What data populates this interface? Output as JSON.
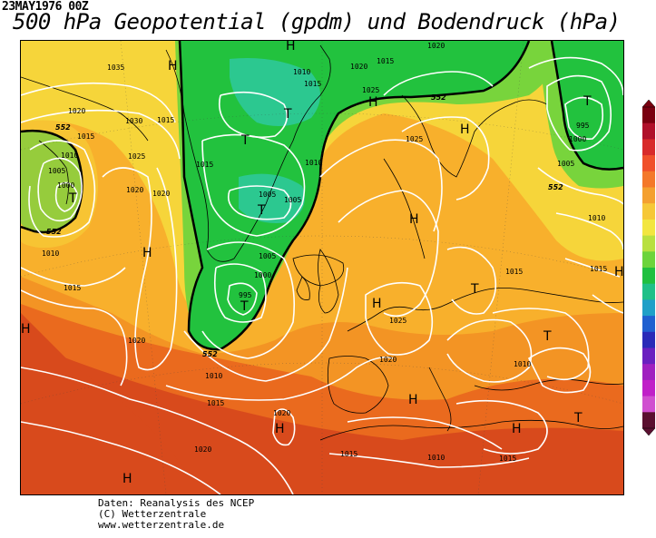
{
  "header": {
    "date": "23MAY1976 00Z",
    "title": "500 hPa Geopotential (gpdm) und Bodendruck (hPa)"
  },
  "credits": {
    "line1": "Daten: Reanalysis des NCEP",
    "line2": "(C) Wetterzentrale",
    "line3": "www.wetterzentrale.de"
  },
  "colors": {
    "dark_red": "#d84a1c",
    "red_orange": "#ea6a1e",
    "orange": "#f39424",
    "light_orange": "#f8b02c",
    "yellow": "#f6d53a",
    "light_green": "#78d43c",
    "green": "#22c23e",
    "cyan_green": "#2cc890",
    "isobar": "#ffffff",
    "coast": "#000000"
  },
  "pressure_labels": [
    {
      "id": "p1035",
      "text": "1035"
    },
    {
      "id": "p1030",
      "text": "1030"
    },
    {
      "id": "p1025a",
      "text": "1025"
    },
    {
      "id": "p1020a",
      "text": "1020"
    },
    {
      "id": "p1020b",
      "text": "1020"
    },
    {
      "id": "p1015a",
      "text": "1015"
    },
    {
      "id": "p1010a",
      "text": "1010"
    },
    {
      "id": "p1005a",
      "text": "1005"
    },
    {
      "id": "p1000a",
      "text": "1000"
    },
    {
      "id": "p1010b",
      "text": "1010"
    },
    {
      "id": "p1015b",
      "text": "1015"
    },
    {
      "id": "p1020c",
      "text": "1020"
    },
    {
      "id": "p1015c",
      "text": "1015"
    },
    {
      "id": "p1010c",
      "text": "1010"
    },
    {
      "id": "p1005b",
      "text": "1005"
    },
    {
      "id": "p1005c",
      "text": "1005"
    },
    {
      "id": "p1005d",
      "text": "1005"
    },
    {
      "id": "p1000b",
      "text": "1000"
    },
    {
      "id": "p995a",
      "text": "995"
    },
    {
      "id": "p1010d",
      "text": "1010"
    },
    {
      "id": "p1015d",
      "text": "1015"
    },
    {
      "id": "p1020d",
      "text": "1020"
    },
    {
      "id": "p1020e",
      "text": "1020"
    },
    {
      "id": "p1015e",
      "text": "1015"
    },
    {
      "id": "p1015f",
      "text": "1015"
    },
    {
      "id": "p1010e",
      "text": "1010"
    },
    {
      "id": "p1015g",
      "text": "1015"
    },
    {
      "id": "p1020f",
      "text": "1020"
    },
    {
      "id": "p1020g",
      "text": "1020"
    },
    {
      "id": "p1015h",
      "text": "1015"
    },
    {
      "id": "p1025b",
      "text": "1025"
    },
    {
      "id": "p1020h",
      "text": "1020"
    },
    {
      "id": "p1025c",
      "text": "1025"
    },
    {
      "id": "p1015i",
      "text": "1015"
    },
    {
      "id": "p1010f",
      "text": "1010"
    },
    {
      "id": "p1015j",
      "text": "1015"
    },
    {
      "id": "p1010g",
      "text": "1010"
    },
    {
      "id": "p1025d",
      "text": "1025"
    },
    {
      "id": "p1020i",
      "text": "1020"
    },
    {
      "id": "p995b",
      "text": "995"
    },
    {
      "id": "p1000c",
      "text": "1000"
    },
    {
      "id": "p1005e",
      "text": "1005"
    },
    {
      "id": "p1010h",
      "text": "1010"
    },
    {
      "id": "p1015k",
      "text": "1015"
    }
  ],
  "geo_labels": [
    {
      "id": "g1",
      "text": "552"
    },
    {
      "id": "g2",
      "text": "552"
    },
    {
      "id": "g3",
      "text": "552"
    },
    {
      "id": "g4",
      "text": "552"
    },
    {
      "id": "g5",
      "text": "552"
    }
  ],
  "pressure_systems": [
    {
      "id": "h1",
      "text": "H"
    },
    {
      "id": "h2",
      "text": "H"
    },
    {
      "id": "h3",
      "text": "H"
    },
    {
      "id": "h4",
      "text": "H"
    },
    {
      "id": "h5",
      "text": "H"
    },
    {
      "id": "h6",
      "text": "H"
    },
    {
      "id": "h7",
      "text": "H"
    },
    {
      "id": "h8",
      "text": "H"
    },
    {
      "id": "h9",
      "text": "H"
    },
    {
      "id": "h10",
      "text": "H"
    },
    {
      "id": "h11",
      "text": "H"
    },
    {
      "id": "h12",
      "text": "H"
    },
    {
      "id": "h13",
      "text": "H"
    },
    {
      "id": "t1",
      "text": "T"
    },
    {
      "id": "t2",
      "text": "T"
    },
    {
      "id": "t3",
      "text": "T"
    },
    {
      "id": "t4",
      "text": "T"
    },
    {
      "id": "t5",
      "text": "T"
    },
    {
      "id": "t6",
      "text": "T"
    },
    {
      "id": "t7",
      "text": "T"
    },
    {
      "id": "t8",
      "text": "T"
    },
    {
      "id": "t9",
      "text": "T"
    }
  ],
  "legend_colors": [
    "#7a0010",
    "#b0102a",
    "#d82a2a",
    "#f0502a",
    "#f4782a",
    "#f4a030",
    "#f6c838",
    "#f2e640",
    "#b8e040",
    "#6cd43c",
    "#20c040",
    "#20c088",
    "#20a0c8",
    "#2060d0",
    "#2a2ab8",
    "#6a20c0",
    "#a020c0",
    "#c020c8",
    "#d050d0",
    "#5a1030"
  ]
}
